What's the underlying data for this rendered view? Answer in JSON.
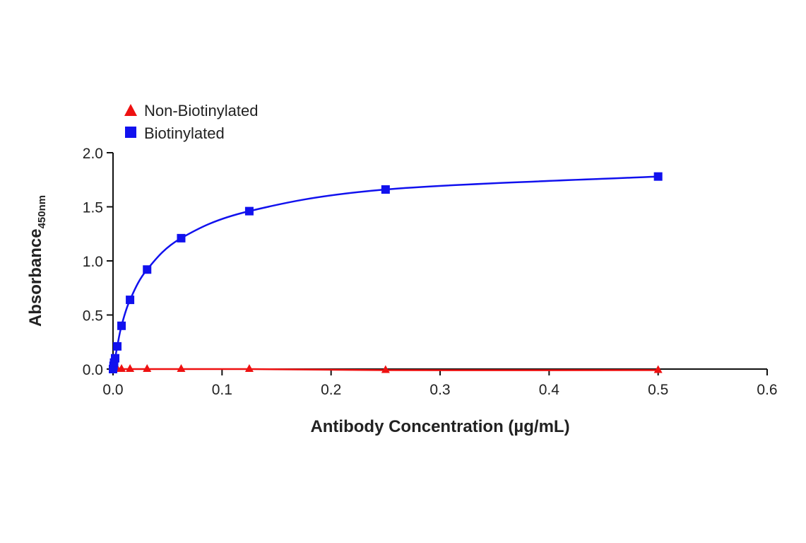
{
  "chart_data": {
    "type": "line",
    "xlabel": "Antibody Concentration (µg/mL)",
    "ylabel_main": "Absorbance",
    "ylabel_sub": "450nm",
    "xlim": [
      0,
      0.6
    ],
    "ylim": [
      0,
      2.0
    ],
    "x_ticks": [
      "0.0",
      "0.1",
      "0.2",
      "0.3",
      "0.4",
      "0.5",
      "0.6"
    ],
    "y_ticks": [
      "0.0",
      "0.5",
      "1.0",
      "1.5",
      "2.0"
    ],
    "grid": false,
    "legend_position": "top-left",
    "series": [
      {
        "name": "Non-Biotinylated",
        "marker": "triangle",
        "color": "#ee1111",
        "x": [
          0,
          0.00049,
          0.00098,
          0.00195,
          0.0039,
          0.0078,
          0.0156,
          0.03125,
          0.0625,
          0.125,
          0.25,
          0.5
        ],
        "y": [
          0.0,
          0.0,
          0.0,
          0.0,
          0.0,
          0.0,
          0.0,
          0.0,
          0.0,
          0.0,
          -0.01,
          -0.01
        ]
      },
      {
        "name": "Biotinylated",
        "marker": "square",
        "color": "#1111ee",
        "x": [
          0,
          0.00049,
          0.00098,
          0.00195,
          0.0039,
          0.0078,
          0.0156,
          0.03125,
          0.0625,
          0.125,
          0.25,
          0.5
        ],
        "y": [
          0.0,
          0.03,
          0.06,
          0.1,
          0.21,
          0.4,
          0.64,
          0.92,
          1.21,
          1.46,
          1.66,
          1.78
        ]
      }
    ]
  }
}
